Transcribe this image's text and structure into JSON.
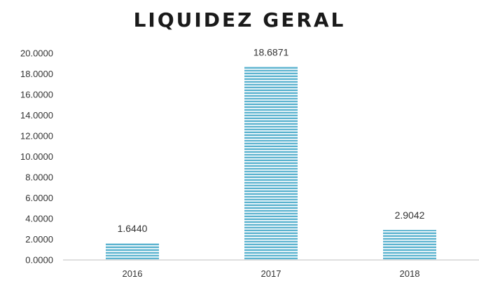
{
  "chart_data": {
    "type": "bar",
    "title": "LIQUIDEZ GERAL",
    "categories": [
      "2016",
      "2017",
      "2018"
    ],
    "values": [
      1.644,
      18.6871,
      2.9042
    ],
    "value_labels": [
      "1.6440",
      "18.6871",
      "2.9042"
    ],
    "ylim": [
      0,
      20
    ],
    "yticks": [
      0,
      2,
      4,
      6,
      8,
      10,
      12,
      14,
      16,
      18,
      20
    ],
    "ytick_labels": [
      "0.0000",
      "2.0000",
      "4.0000",
      "6.0000",
      "8.0000",
      "10.0000",
      "12.0000",
      "14.0000",
      "16.0000",
      "18.0000",
      "20.0000"
    ],
    "xlabel": "",
    "ylabel": "",
    "grid": false,
    "legend": "none",
    "bar_color": "#5bb3cf",
    "bar_stripe_color": "#ffffff"
  }
}
